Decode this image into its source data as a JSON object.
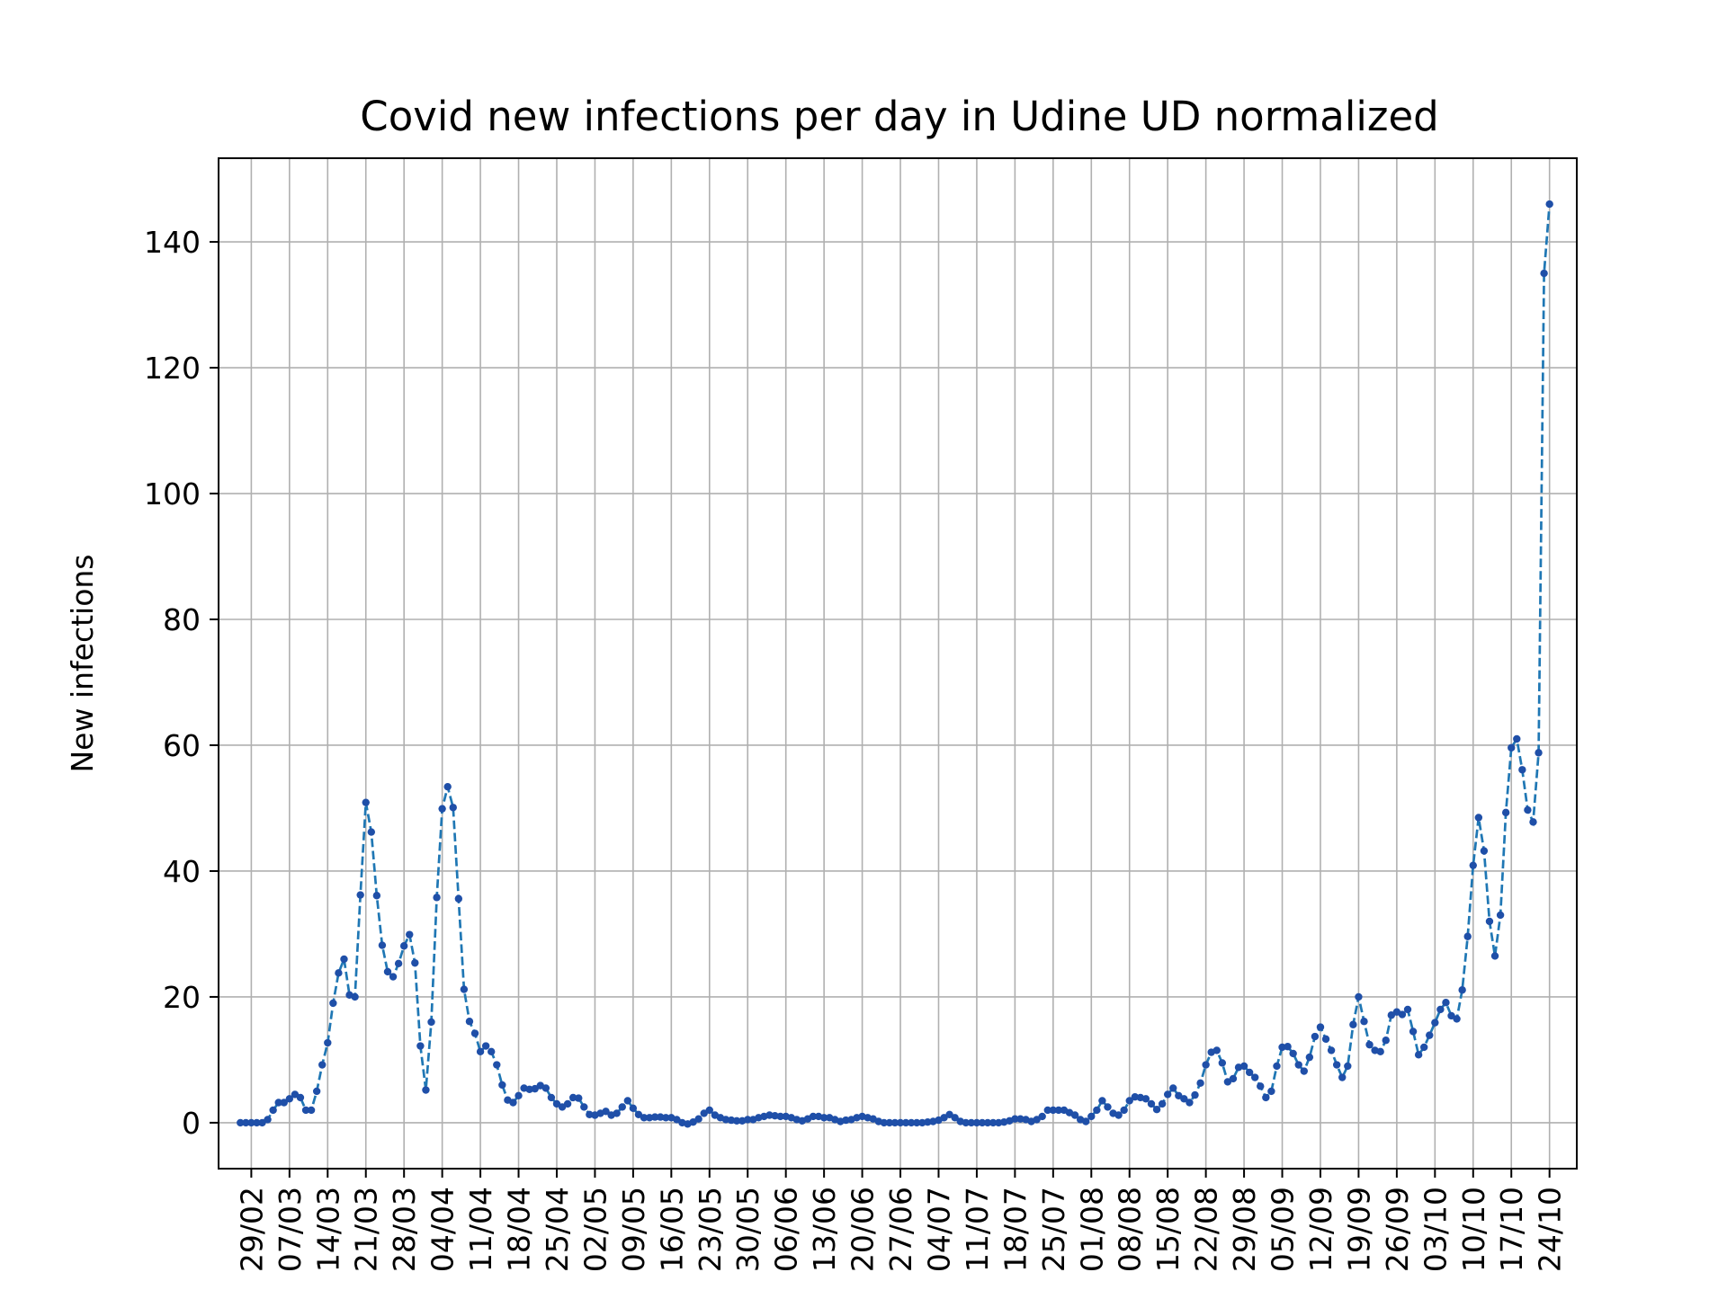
{
  "chart_data": {
    "type": "line",
    "title": "Covid new infections per day in Udine UD normalized",
    "xlabel": "",
    "ylabel": "New infections",
    "ylim": [
      -7.3,
      153.3
    ],
    "yticks": [
      0,
      20,
      40,
      60,
      80,
      100,
      120,
      140
    ],
    "xlim": [
      "2020-02-23",
      "2020-10-29"
    ],
    "xticks": [
      "29/02",
      "07/03",
      "14/03",
      "21/03",
      "28/03",
      "04/04",
      "11/04",
      "18/04",
      "25/04",
      "02/05",
      "09/05",
      "16/05",
      "23/05",
      "30/05",
      "06/06",
      "13/06",
      "20/06",
      "27/06",
      "04/07",
      "11/07",
      "18/07",
      "25/07",
      "01/08",
      "08/08",
      "15/08",
      "22/08",
      "29/08",
      "05/09",
      "12/09",
      "19/09",
      "26/09",
      "03/10",
      "10/10",
      "17/10",
      "24/10"
    ],
    "grid": true,
    "line_color": "#1f77b4",
    "marker_color": "#1f4fa8",
    "series": [
      {
        "x_start": "2020-02-27",
        "x_step_days": 1,
        "values": [
          0,
          0,
          0,
          0,
          0,
          0.5,
          2,
          3.2,
          3.2,
          3.8,
          4.5,
          4,
          2,
          2,
          5,
          9.2,
          12.7,
          19,
          23.8,
          26,
          20.3,
          20,
          36.2,
          50.9,
          46.2,
          36.1,
          28.2,
          24,
          23.2,
          25.3,
          28.1,
          29.9,
          25.4,
          12.2,
          5.2,
          16,
          35.8,
          49.9,
          53.4,
          50.1,
          35.6,
          21.2,
          16.1,
          14.2,
          11.3,
          12.2,
          11.3,
          9.2,
          6,
          3.6,
          3.2,
          4.3,
          5.5,
          5.3,
          5.4,
          5.9,
          5.5,
          4,
          3,
          2.5,
          3,
          4,
          3.9,
          2.5,
          1.3,
          1.2,
          1.5,
          1.8,
          1.2,
          1.5,
          2.5,
          3.5,
          2.3,
          1.3,
          0.8,
          0.8,
          0.9,
          0.9,
          0.8,
          0.8,
          0.5,
          0,
          -0.2,
          0.1,
          0.6,
          1.5,
          2,
          1.2,
          0.8,
          0.5,
          0.4,
          0.3,
          0.3,
          0.5,
          0.5,
          0.8,
          1,
          1.2,
          1.1,
          1,
          1,
          0.8,
          0.5,
          0.3,
          0.6,
          1,
          1,
          0.8,
          0.8,
          0.5,
          0.2,
          0.4,
          0.5,
          0.8,
          1,
          0.8,
          0.6,
          0.2,
          0,
          0,
          0,
          0,
          0,
          0,
          0,
          0,
          0.1,
          0.2,
          0.4,
          0.8,
          1.3,
          0.8,
          0.2,
          0,
          0,
          0,
          0,
          0,
          0,
          0,
          0.1,
          0.3,
          0.6,
          0.6,
          0.5,
          0.2,
          0.5,
          1,
          2,
          2,
          2,
          2,
          1.6,
          1.2,
          0.5,
          0.2,
          1,
          2,
          3.5,
          2.5,
          1.5,
          1.2,
          2,
          3.5,
          4.1,
          4,
          3.8,
          3,
          2.1,
          3,
          4.5,
          5.5,
          4.3,
          3.8,
          3.2,
          4.4,
          6.3,
          9.2,
          11.2,
          11.5,
          9.5,
          6.5,
          7,
          8.8,
          9,
          8,
          7.2,
          5.8,
          4,
          5,
          9,
          12,
          12.1,
          11,
          9.2,
          8.2,
          10.4,
          13.7,
          15.2,
          13.3,
          11.5,
          9.2,
          7.2,
          9,
          15.6,
          20,
          16.1,
          12.4,
          11.5,
          11.3,
          13.1,
          17.1,
          17.6,
          17.2,
          18,
          14.5,
          10.8,
          12,
          13.9,
          15.9,
          18,
          19.1,
          17,
          16.5,
          21.1,
          29.6,
          40.9,
          48.5,
          43.2,
          32,
          26.5,
          33,
          49.3,
          59.6,
          61,
          56.1,
          49.7,
          47.8,
          58.8,
          135,
          146
        ]
      }
    ]
  }
}
